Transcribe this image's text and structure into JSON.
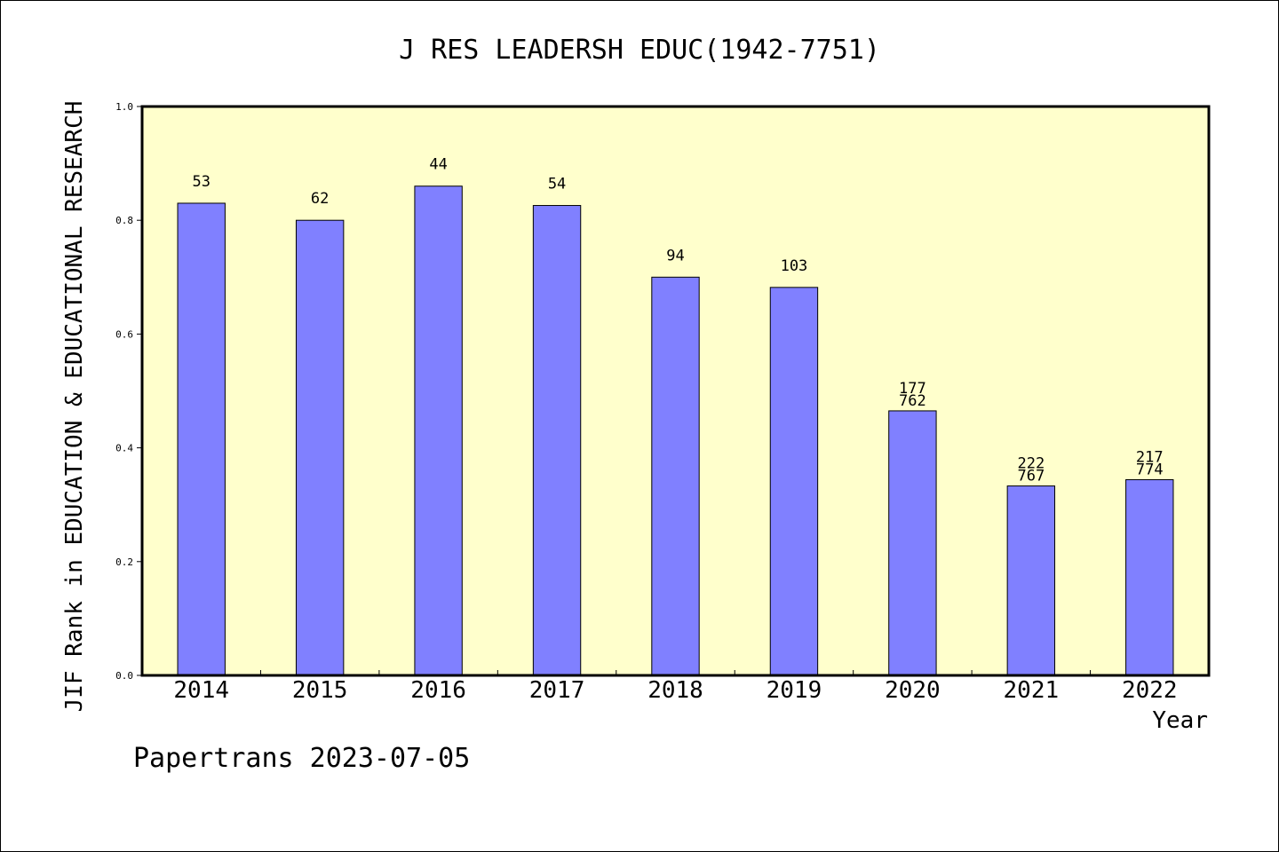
{
  "chart_data": {
    "type": "bar",
    "title": "J RES LEADERSH EDUC(1942-7751)",
    "xlabel": "Year",
    "ylabel": "JIF Rank in EDUCATION & EDUCATIONAL RESEARCH",
    "ylim": [
      0,
      1.0
    ],
    "yticks": [
      "0.0",
      "0.2",
      "0.4",
      "0.6",
      "0.8",
      "1.0"
    ],
    "categories": [
      "2014",
      "2015",
      "2016",
      "2017",
      "2018",
      "2019",
      "2020",
      "2021",
      "2022"
    ],
    "values": [
      0.83,
      0.8,
      0.86,
      0.826,
      0.7,
      0.682,
      0.465,
      0.333,
      0.344
    ],
    "bar_labels": [
      [
        "53"
      ],
      [
        "62"
      ],
      [
        "44"
      ],
      [
        "54"
      ],
      [
        "94"
      ],
      [
        "103"
      ],
      [
        "177",
        "762"
      ],
      [
        "222",
        "767"
      ],
      [
        "217",
        "774"
      ]
    ],
    "grid": false,
    "colors": {
      "plot_background": "#ffffcc",
      "bar_fill": "#8080ff",
      "bar_stroke": "#000000"
    }
  },
  "footer": {
    "text": "Papertrans 2023-07-05"
  }
}
